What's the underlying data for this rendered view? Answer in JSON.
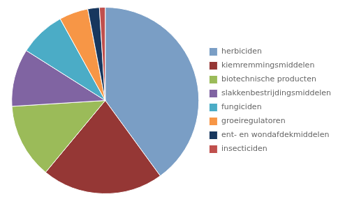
{
  "chart_data": {
    "type": "pie",
    "categories": [
      "herbiciden",
      "kiemremmingsmiddelen",
      "biotechnische producten",
      "slakkenbestrijdingsmiddelen",
      "fungiciden",
      "groeiregulatoren",
      "ent- en wondafdekmiddelen",
      "insecticiden"
    ],
    "values": [
      40,
      21,
      13,
      10,
      8,
      5,
      2,
      1
    ],
    "colors": [
      "#7a9ec5",
      "#953735",
      "#9bbb59",
      "#8064a2",
      "#4bacc6",
      "#f79646",
      "#17375e",
      "#c0504d"
    ],
    "legend": "right"
  }
}
